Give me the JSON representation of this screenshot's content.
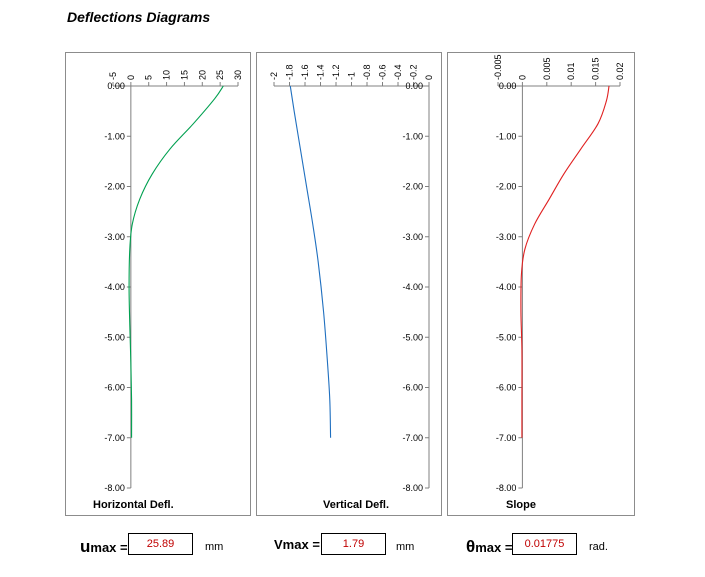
{
  "title": "Deflections Diagrams",
  "chart_data": [
    {
      "type": "line",
      "title": "Horizontal Defl.",
      "x_ticks": [
        "-5",
        "0",
        "5",
        "10",
        "15",
        "20",
        "25",
        "30"
      ],
      "xlim": [
        -5,
        30
      ],
      "y_ticks": [
        "0.00",
        "-1.00",
        "-2.00",
        "-3.00",
        "-4.00",
        "-5.00",
        "-6.00",
        "-7.00",
        "-8.00"
      ],
      "ylim": [
        -8,
        0
      ],
      "color": "#00a050",
      "series": [
        {
          "x": [
            25.89,
            23.5,
            17.5,
            11,
            6,
            2.5,
            0.4,
            -0.3,
            -0.5,
            -0.3,
            0,
            0.2,
            0.2
          ],
          "y": [
            0,
            -0.25,
            -0.75,
            -1.25,
            -1.75,
            -2.25,
            -2.75,
            -3.25,
            -4,
            -4.75,
            -5.5,
            -6.25,
            -7
          ]
        }
      ]
    },
    {
      "type": "line",
      "title": "Vertical Defl.",
      "x_ticks": [
        "-2",
        "-1.8",
        "-1.6",
        "-1.4",
        "-1.2",
        "-1",
        "-0.8",
        "-0.6",
        "-0.4",
        "-0.2",
        "0"
      ],
      "xlim": [
        -2,
        0
      ],
      "y_ticks": [
        "0.00",
        "-1.00",
        "-2.00",
        "-3.00",
        "-4.00",
        "-5.00",
        "-6.00",
        "-7.00",
        "-8.00"
      ],
      "ylim": [
        -8,
        0
      ],
      "color": "#1f6fbf",
      "series": [
        {
          "x": [
            -1.79,
            -1.74,
            -1.66,
            -1.58,
            -1.5,
            -1.43,
            -1.36,
            -1.31,
            -1.28,
            -1.27
          ],
          "y": [
            0,
            -0.5,
            -1.25,
            -2,
            -2.75,
            -3.5,
            -4.5,
            -5.5,
            -6.25,
            -7
          ]
        }
      ]
    },
    {
      "type": "line",
      "title": "Slope",
      "x_ticks": [
        "-0.005",
        "0",
        "0.005",
        "0.01",
        "0.015",
        "0.02"
      ],
      "xlim": [
        -0.005,
        0.02
      ],
      "y_ticks": [
        "0.00",
        "-1.00",
        "-2.00",
        "-3.00",
        "-4.00",
        "-5.00",
        "-6.00",
        "-7.00",
        "-8.00"
      ],
      "ylim": [
        -8,
        0
      ],
      "color": "#e02020",
      "series": [
        {
          "x": [
            0.01775,
            0.0172,
            0.0155,
            0.012,
            0.0085,
            0.0055,
            0.0025,
            0.0005,
            -0.0002,
            -0.0003,
            -0.0001,
            -0.0001,
            -0.0001
          ],
          "y": [
            0,
            -0.3,
            -0.75,
            -1.25,
            -1.75,
            -2.25,
            -2.75,
            -3.25,
            -3.75,
            -4.5,
            -5.25,
            -6.25,
            -7
          ]
        }
      ]
    }
  ],
  "results": {
    "u_sym": "u",
    "u_sub": "max",
    "u_eq": "=",
    "u_value": "25.89",
    "u_unit": "mm",
    "v_sym": "V",
    "v_sub": "max",
    "v_eq": "=",
    "v_value": "1.79",
    "v_unit": "mm",
    "t_sym": "θ",
    "t_sub": "max",
    "t_eq": "=",
    "t_value": "0.01775",
    "t_unit": "rad."
  }
}
